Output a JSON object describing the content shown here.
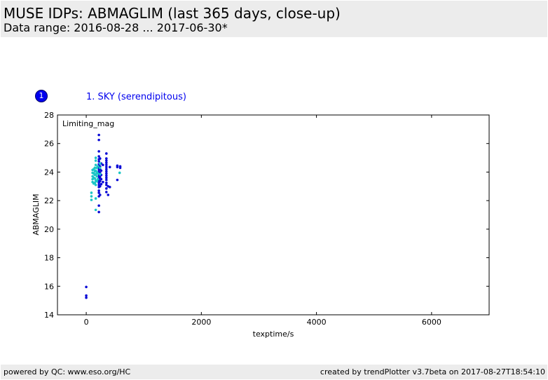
{
  "header": {
    "title": "MUSE IDPs: ABMAGLIM (last 365 days, close-up)",
    "subtitle": "Data range: 2016-08-28 ... 2017-06-30*"
  },
  "panel": {
    "badge": "1",
    "title": "1. SKY (serendipitous)"
  },
  "footer": {
    "left": "powered by QC: www.eso.org/HC",
    "right": "created by trendPlotter v3.7beta on 2017-08-27T18:54:10"
  },
  "colors": {
    "series_dark": "#0b0bd6",
    "series_cyan": "#1cc6c6",
    "title_blue": "#0000ee",
    "header_bg": "#ececec"
  },
  "chart_data": {
    "type": "scatter",
    "title": "",
    "annotation": "Limiting_mag",
    "xlabel": "texptime/s",
    "ylabel": "ABMAGLIM",
    "xlim": [
      -500,
      7000
    ],
    "ylim": [
      14,
      28
    ],
    "xticks": [
      0,
      2000,
      4000,
      6000
    ],
    "yticks": [
      14,
      16,
      18,
      20,
      22,
      24,
      26,
      28
    ],
    "grid": false,
    "series": [
      {
        "color": "#0b0bd6",
        "points": [
          [
            0,
            15.95
          ],
          [
            0,
            15.35
          ],
          [
            0,
            15.2
          ],
          [
            220,
            26.6
          ],
          [
            220,
            26.25
          ],
          [
            220,
            25.45
          ],
          [
            220,
            25.1
          ],
          [
            220,
            24.9
          ],
          [
            220,
            24.75
          ],
          [
            220,
            24.55
          ],
          [
            220,
            24.3
          ],
          [
            220,
            24.15
          ],
          [
            220,
            24.0
          ],
          [
            220,
            23.85
          ],
          [
            220,
            23.7
          ],
          [
            220,
            23.55
          ],
          [
            220,
            23.4
          ],
          [
            220,
            23.25
          ],
          [
            220,
            23.1
          ],
          [
            220,
            22.95
          ],
          [
            220,
            22.7
          ],
          [
            220,
            22.55
          ],
          [
            220,
            22.3
          ],
          [
            220,
            21.65
          ],
          [
            220,
            21.2
          ],
          [
            240,
            24.95
          ],
          [
            240,
            24.4
          ],
          [
            240,
            24.2
          ],
          [
            240,
            23.95
          ],
          [
            240,
            23.65
          ],
          [
            240,
            23.35
          ],
          [
            240,
            23.0
          ],
          [
            240,
            22.4
          ],
          [
            260,
            24.6
          ],
          [
            260,
            24.1
          ],
          [
            260,
            23.8
          ],
          [
            260,
            23.5
          ],
          [
            260,
            23.15
          ],
          [
            290,
            24.5
          ],
          [
            290,
            23.3
          ],
          [
            350,
            25.3
          ],
          [
            350,
            24.95
          ],
          [
            350,
            24.8
          ],
          [
            350,
            24.65
          ],
          [
            350,
            24.5
          ],
          [
            350,
            24.35
          ],
          [
            350,
            24.2
          ],
          [
            350,
            24.05
          ],
          [
            350,
            23.9
          ],
          [
            350,
            23.75
          ],
          [
            350,
            23.6
          ],
          [
            350,
            23.45
          ],
          [
            350,
            23.25
          ],
          [
            350,
            23.1
          ],
          [
            350,
            22.85
          ],
          [
            350,
            22.6
          ],
          [
            380,
            23.0
          ],
          [
            380,
            22.4
          ],
          [
            410,
            24.35
          ],
          [
            410,
            22.95
          ],
          [
            540,
            24.45
          ],
          [
            540,
            24.35
          ],
          [
            540,
            23.45
          ],
          [
            590,
            24.4
          ],
          [
            590,
            24.3
          ]
        ]
      },
      {
        "color": "#1cc6c6",
        "points": [
          [
            90,
            22.55
          ],
          [
            90,
            22.3
          ],
          [
            90,
            22.05
          ],
          [
            110,
            24.15
          ],
          [
            110,
            23.95
          ],
          [
            110,
            23.7
          ],
          [
            110,
            23.5
          ],
          [
            110,
            23.3
          ],
          [
            130,
            24.2
          ],
          [
            130,
            23.9
          ],
          [
            130,
            23.6
          ],
          [
            130,
            23.2
          ],
          [
            150,
            24.3
          ],
          [
            150,
            24.05
          ],
          [
            150,
            23.8
          ],
          [
            150,
            23.55
          ],
          [
            150,
            23.25
          ],
          [
            165,
            25.0
          ],
          [
            165,
            24.8
          ],
          [
            165,
            24.5
          ],
          [
            165,
            24.1
          ],
          [
            165,
            23.85
          ],
          [
            165,
            23.4
          ],
          [
            165,
            23.1
          ],
          [
            165,
            22.15
          ],
          [
            165,
            21.35
          ],
          [
            185,
            24.3
          ],
          [
            185,
            24.0
          ],
          [
            185,
            23.7
          ],
          [
            185,
            23.35
          ],
          [
            200,
            24.4
          ],
          [
            200,
            23.9
          ],
          [
            200,
            23.5
          ],
          [
            240,
            24.6
          ],
          [
            240,
            24.3
          ],
          [
            240,
            23.85
          ],
          [
            580,
            23.95
          ]
        ]
      }
    ]
  }
}
